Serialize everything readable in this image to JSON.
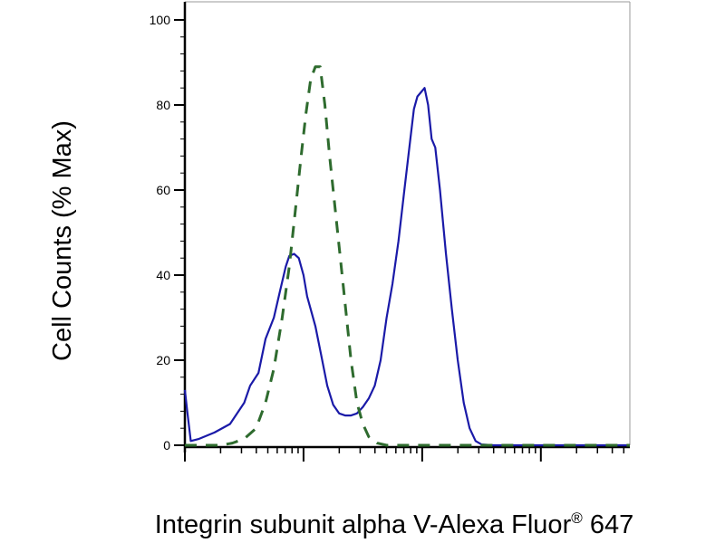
{
  "chart_data": {
    "type": "line",
    "title": "",
    "xlabel": "Integrin subunit alpha V-Alexa Fluor",
    "xlabel_superscript": "®",
    "xlabel_suffix": " 647",
    "ylabel": "Cell Counts (% Max)",
    "x_scale": "log",
    "xlim": [
      0,
      3.75
    ],
    "ylim": [
      0,
      100
    ],
    "y_ticks": [
      0,
      20,
      40,
      60,
      80,
      100
    ],
    "grid": false,
    "legend": "none",
    "series": [
      {
        "style": "solid",
        "color": "#1a1aa8",
        "points": [
          [
            0.0,
            13
          ],
          [
            0.02,
            8
          ],
          [
            0.05,
            1
          ],
          [
            0.12,
            1.5
          ],
          [
            0.25,
            3
          ],
          [
            0.38,
            5
          ],
          [
            0.5,
            10
          ],
          [
            0.55,
            14
          ],
          [
            0.62,
            17
          ],
          [
            0.68,
            25
          ],
          [
            0.75,
            30
          ],
          [
            0.8,
            36
          ],
          [
            0.85,
            42
          ],
          [
            0.88,
            44.5
          ],
          [
            0.92,
            45
          ],
          [
            0.96,
            44
          ],
          [
            1.0,
            40
          ],
          [
            1.03,
            35
          ],
          [
            1.06,
            32
          ],
          [
            1.1,
            28
          ],
          [
            1.15,
            21
          ],
          [
            1.2,
            14
          ],
          [
            1.25,
            9.5
          ],
          [
            1.3,
            7.5
          ],
          [
            1.35,
            7
          ],
          [
            1.4,
            7
          ],
          [
            1.45,
            7.5
          ],
          [
            1.5,
            9
          ],
          [
            1.55,
            11
          ],
          [
            1.6,
            14
          ],
          [
            1.65,
            20
          ],
          [
            1.7,
            30
          ],
          [
            1.75,
            38
          ],
          [
            1.8,
            48
          ],
          [
            1.85,
            60
          ],
          [
            1.9,
            72
          ],
          [
            1.93,
            79
          ],
          [
            1.96,
            82
          ],
          [
            1.99,
            83
          ],
          [
            2.02,
            84
          ],
          [
            2.05,
            80
          ],
          [
            2.08,
            72
          ],
          [
            2.11,
            70
          ],
          [
            2.15,
            60
          ],
          [
            2.2,
            45
          ],
          [
            2.25,
            32
          ],
          [
            2.3,
            20
          ],
          [
            2.35,
            10
          ],
          [
            2.4,
            4
          ],
          [
            2.45,
            1
          ],
          [
            2.5,
            0.2
          ],
          [
            2.6,
            0
          ],
          [
            3.75,
            0
          ]
        ]
      },
      {
        "style": "dashed",
        "color": "#2e6b2e",
        "points": [
          [
            0.0,
            0
          ],
          [
            0.3,
            0
          ],
          [
            0.4,
            0.5
          ],
          [
            0.5,
            1.5
          ],
          [
            0.6,
            4
          ],
          [
            0.68,
            10
          ],
          [
            0.75,
            18
          ],
          [
            0.82,
            30
          ],
          [
            0.88,
            42
          ],
          [
            0.93,
            55
          ],
          [
            0.98,
            68
          ],
          [
            1.02,
            78
          ],
          [
            1.06,
            86
          ],
          [
            1.1,
            89
          ],
          [
            1.14,
            89
          ],
          [
            1.18,
            80
          ],
          [
            1.22,
            68
          ],
          [
            1.28,
            52
          ],
          [
            1.34,
            36
          ],
          [
            1.4,
            20
          ],
          [
            1.45,
            10
          ],
          [
            1.5,
            5
          ],
          [
            1.55,
            2
          ],
          [
            1.62,
            0.5
          ],
          [
            1.7,
            0
          ],
          [
            3.75,
            0
          ]
        ]
      }
    ]
  }
}
